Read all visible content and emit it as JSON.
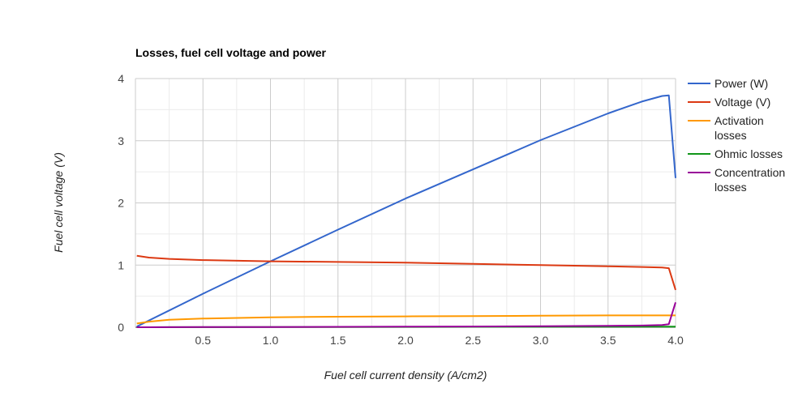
{
  "chart_data": {
    "type": "line",
    "title": "Losses, fuel cell voltage and power",
    "xlabel": "Fuel cell current density (A/cm2)",
    "ylabel": "Fuel cell voltage (V)",
    "xlim": [
      0.0,
      4.0
    ],
    "ylim": [
      0,
      4
    ],
    "x_ticks": [
      "0.5",
      "1.0",
      "1.5",
      "2.0",
      "2.5",
      "3.0",
      "3.5",
      "4.0"
    ],
    "y_ticks": [
      "0",
      "1",
      "2",
      "3",
      "4"
    ],
    "grid": true,
    "legend_position": "right",
    "x": [
      0.01,
      0.1,
      0.25,
      0.5,
      1.0,
      1.5,
      2.0,
      2.5,
      3.0,
      3.5,
      3.75,
      3.9,
      3.95,
      4.0
    ],
    "series": [
      {
        "name": "Power (W)",
        "color": "#3366cc",
        "values": [
          0.01,
          0.11,
          0.27,
          0.54,
          1.06,
          1.57,
          2.07,
          2.54,
          3.01,
          3.44,
          3.63,
          3.72,
          3.73,
          2.4
        ]
      },
      {
        "name": "Voltage (V)",
        "color": "#dc3912",
        "values": [
          1.15,
          1.12,
          1.1,
          1.08,
          1.06,
          1.05,
          1.04,
          1.02,
          1.0,
          0.98,
          0.97,
          0.96,
          0.95,
          0.6
        ]
      },
      {
        "name": "Activation losses",
        "color": "#ff9900",
        "values": [
          0.06,
          0.09,
          0.12,
          0.14,
          0.16,
          0.17,
          0.175,
          0.18,
          0.185,
          0.19,
          0.19,
          0.19,
          0.19,
          0.19
        ]
      },
      {
        "name": "Ohmic losses",
        "color": "#109618",
        "values": [
          0.0,
          0.0,
          0.001,
          0.001,
          0.003,
          0.004,
          0.005,
          0.006,
          0.007,
          0.009,
          0.01,
          0.01,
          0.01,
          0.01
        ]
      },
      {
        "name": "Concentration losses",
        "color": "#990099",
        "values": [
          0.0,
          0.0,
          0.001,
          0.002,
          0.004,
          0.006,
          0.009,
          0.012,
          0.016,
          0.022,
          0.028,
          0.035,
          0.05,
          0.4
        ]
      }
    ]
  }
}
